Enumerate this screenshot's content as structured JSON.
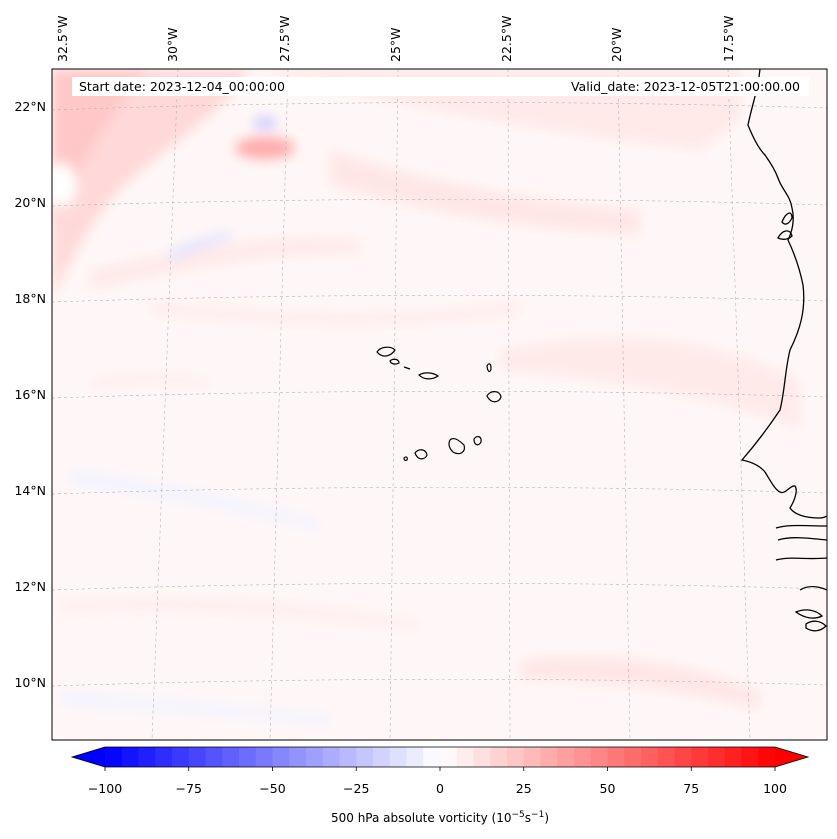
{
  "map": {
    "start_date": "Start date: 2023-12-04_00:00:00",
    "valid_date": "Valid_date: 2023-12-05T21:00:00.00",
    "lon_labels": [
      "32.5°W",
      "30°W",
      "27.5°W",
      "25°W",
      "22.5°W",
      "20°W",
      "17.5°W"
    ],
    "lat_labels": [
      "22°N",
      "20°N",
      "18°N",
      "16°N",
      "14°N",
      "12°N",
      "10°N"
    ],
    "colorbar": {
      "title": "500 hPa absolute vorticity (10",
      "title_sup1": "−5",
      "title_mid": "s",
      "title_sup2": "−1",
      "title_end": ")",
      "ticks": [
        "−100",
        "−75",
        "−50",
        "−25",
        "0",
        "25",
        "50",
        "75",
        "100"
      ],
      "min": -100,
      "max": 100,
      "colors": {
        "low": "#0000ff",
        "mid": "#ffffff",
        "high": "#ff0000"
      }
    }
  }
}
